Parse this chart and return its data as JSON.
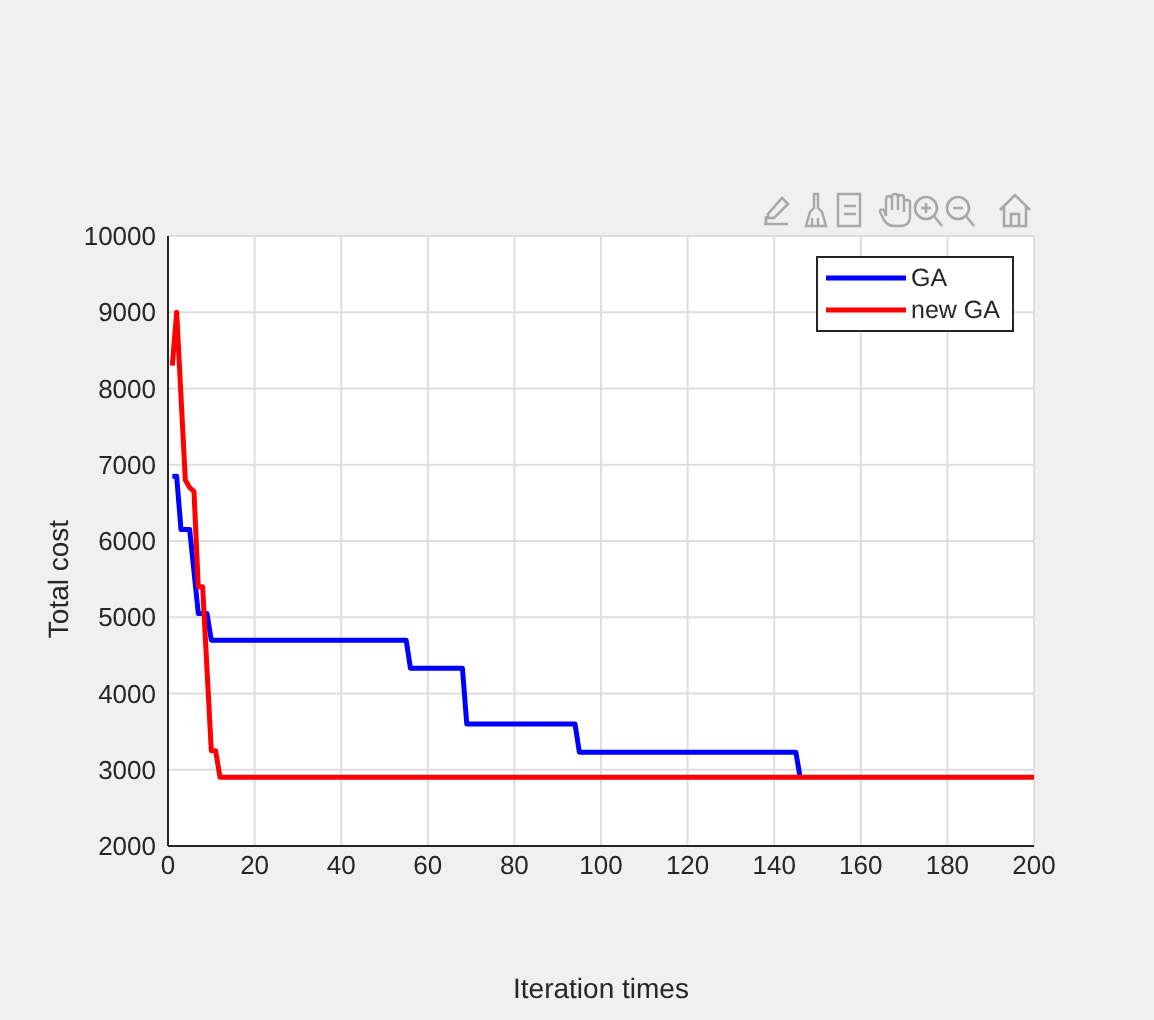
{
  "chart_data": {
    "type": "line",
    "xlabel": "Iteration times",
    "ylabel": "Total cost",
    "xlim": [
      0,
      200
    ],
    "ylim": [
      2000,
      10000
    ],
    "xticks": [
      0,
      20,
      40,
      60,
      80,
      100,
      120,
      140,
      160,
      180,
      200
    ],
    "yticks": [
      2000,
      3000,
      4000,
      5000,
      6000,
      7000,
      8000,
      9000,
      10000
    ],
    "grid": true,
    "legend": "top right",
    "series": [
      {
        "name": "GA",
        "color": "#0000ff",
        "x": [
          1,
          2,
          3,
          5,
          7,
          9,
          10,
          55,
          56,
          68,
          69,
          94,
          95,
          145,
          146
        ],
        "values": [
          6850,
          6850,
          6150,
          6150,
          5050,
          5050,
          4700,
          4700,
          4330,
          4330,
          3600,
          3600,
          3230,
          3230,
          2900
        ]
      },
      {
        "name": "new GA",
        "color": "#ff0000",
        "x": [
          1,
          2,
          4,
          5,
          6,
          7,
          8,
          10,
          11,
          12,
          200
        ],
        "values": [
          8300,
          9000,
          6800,
          6700,
          6650,
          5400,
          5400,
          3250,
          3250,
          2900,
          2900
        ]
      }
    ]
  }
}
